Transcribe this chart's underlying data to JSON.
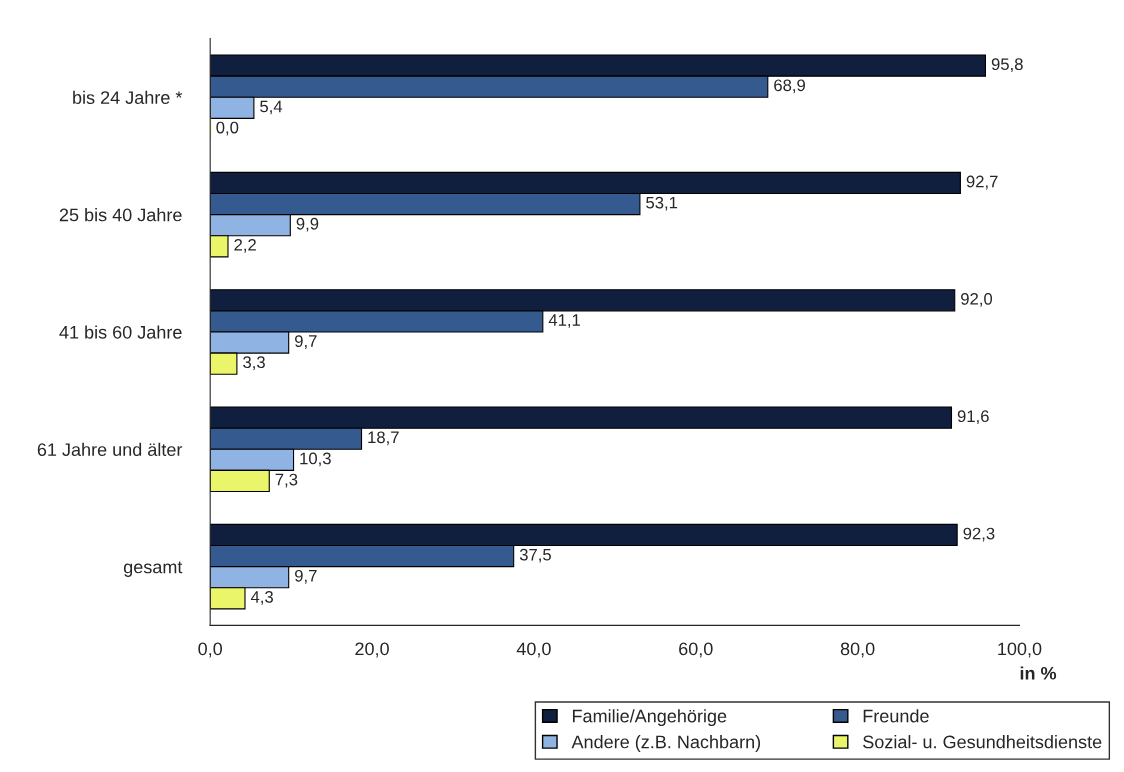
{
  "chart_data": {
    "type": "bar",
    "orientation": "horizontal",
    "categories": [
      "bis 24 Jahre *",
      "25 bis 40 Jahre",
      "41 bis 60 Jahre",
      "61 Jahre und älter",
      "gesamt"
    ],
    "series": [
      {
        "name": "Familie/Angehörige",
        "color": "#0f1f3d",
        "values": [
          95.8,
          92.7,
          92.0,
          91.6,
          92.3
        ],
        "value_labels": [
          "95,8",
          "92,7",
          "92,0",
          "91,6",
          "92,3"
        ]
      },
      {
        "name": "Freunde",
        "color": "#355a8f",
        "values": [
          68.9,
          53.1,
          41.1,
          18.7,
          37.5
        ],
        "value_labels": [
          "68,9",
          "53,1",
          "41,1",
          "18,7",
          "37,5"
        ]
      },
      {
        "name": "Andere (z.B. Nachbarn)",
        "color": "#8fb3e3",
        "values": [
          5.4,
          9.9,
          9.7,
          10.3,
          9.7
        ],
        "value_labels": [
          "5,4",
          "9,9",
          "9,7",
          "10,3",
          "9,7"
        ]
      },
      {
        "name": "Sozial- u. Gesundheitsdienste",
        "color": "#eaf56a",
        "values": [
          0.0,
          2.2,
          3.3,
          7.3,
          4.3
        ],
        "value_labels": [
          "0,0",
          "2,2",
          "3,3",
          "7,3",
          "4,3"
        ]
      }
    ],
    "xlim": [
      0,
      100
    ],
    "xticks": [
      {
        "value": 0,
        "label": "0,0"
      },
      {
        "value": 20,
        "label": "20,0"
      },
      {
        "value": 40,
        "label": "40,0"
      },
      {
        "value": 60,
        "label": "60,0"
      },
      {
        "value": 80,
        "label": "80,0"
      },
      {
        "value": 100,
        "label": "100,0"
      }
    ],
    "xlabel": "in %",
    "legend": "bottom right",
    "grid": false
  }
}
